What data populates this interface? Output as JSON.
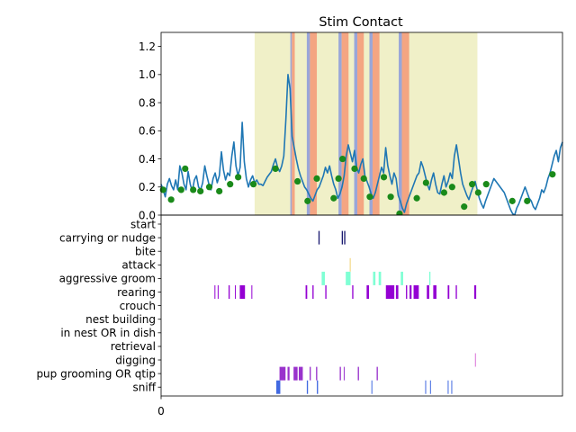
{
  "chart_data": [
    {
      "type": "line",
      "title": "Stim Contact",
      "xlim": [
        0,
        1000
      ],
      "ylim": [
        0,
        1.3
      ],
      "y_ticks": [
        0.0,
        0.2,
        0.4,
        0.6,
        0.8,
        1.0,
        1.2
      ],
      "y_tick_labels": [
        "0.0",
        "0.2",
        "0.4",
        "0.6",
        "0.8",
        "1.0",
        "1.2"
      ],
      "line_color": "#1f77b4",
      "marker_color": "#1a8a1a",
      "highlight_color": "#f0f0c8",
      "stim_on_color": "#f4a582",
      "stim_pre_color": "#9aa6d8",
      "highlight_window": [
        233,
        788
      ],
      "stim_pulses": [
        [
          322,
          333
        ],
        [
          363,
          388
        ],
        [
          442,
          467
        ],
        [
          481,
          505
        ],
        [
          519,
          544
        ],
        [
          592,
          618
        ]
      ],
      "series": [
        {
          "values": [
            0.22,
            0.18,
            0.13,
            0.22,
            0.26,
            0.21,
            0.18,
            0.25,
            0.18,
            0.35,
            0.3,
            0.22,
            0.18,
            0.31,
            0.22,
            0.17,
            0.25,
            0.28,
            0.2,
            0.18,
            0.23,
            0.35,
            0.28,
            0.22,
            0.18,
            0.26,
            0.3,
            0.23,
            0.28,
            0.45,
            0.32,
            0.25,
            0.3,
            0.28,
            0.42,
            0.52,
            0.35,
            0.28,
            0.34,
            0.66,
            0.38,
            0.26,
            0.2,
            0.25,
            0.28,
            0.23,
            0.25,
            0.22,
            0.22,
            0.21,
            0.24,
            0.27,
            0.29,
            0.31,
            0.36,
            0.4,
            0.34,
            0.31,
            0.35,
            0.42,
            0.68,
            1.0,
            0.9,
            0.56,
            0.48,
            0.4,
            0.33,
            0.28,
            0.24,
            0.2,
            0.18,
            0.15,
            0.12,
            0.1,
            0.14,
            0.18,
            0.2,
            0.24,
            0.28,
            0.34,
            0.3,
            0.35,
            0.28,
            0.22,
            0.18,
            0.12,
            0.15,
            0.2,
            0.28,
            0.42,
            0.5,
            0.44,
            0.38,
            0.46,
            0.34,
            0.3,
            0.36,
            0.4,
            0.28,
            0.24,
            0.2,
            0.15,
            0.12,
            0.16,
            0.22,
            0.28,
            0.34,
            0.3,
            0.48,
            0.35,
            0.28,
            0.22,
            0.3,
            0.26,
            0.14,
            0.1,
            0.05,
            0.02,
            0.08,
            0.12,
            0.16,
            0.2,
            0.24,
            0.28,
            0.3,
            0.38,
            0.34,
            0.28,
            0.22,
            0.18,
            0.25,
            0.3,
            0.22,
            0.16,
            0.15,
            0.22,
            0.28,
            0.2,
            0.24,
            0.3,
            0.26,
            0.42,
            0.5,
            0.4,
            0.3,
            0.22,
            0.18,
            0.14,
            0.11,
            0.16,
            0.2,
            0.24,
            0.18,
            0.12,
            0.08,
            0.05,
            0.1,
            0.14,
            0.18,
            0.22,
            0.26,
            0.24,
            0.22,
            0.2,
            0.18,
            0.16,
            0.12,
            0.08,
            0.04,
            0.01,
            0.0,
            0.05,
            0.08,
            0.12,
            0.16,
            0.2,
            0.16,
            0.12,
            0.1,
            0.06,
            0.04,
            0.08,
            0.12,
            0.18,
            0.16,
            0.2,
            0.26,
            0.3,
            0.36,
            0.42,
            0.46,
            0.38,
            0.48,
            0.52
          ]
        }
      ],
      "markers": [
        [
          5,
          0.18
        ],
        [
          25,
          0.11
        ],
        [
          50,
          0.18
        ],
        [
          60,
          0.33
        ],
        [
          80,
          0.18
        ],
        [
          98,
          0.17
        ],
        [
          120,
          0.2
        ],
        [
          145,
          0.17
        ],
        [
          172,
          0.22
        ],
        [
          192,
          0.27
        ],
        [
          230,
          0.22
        ],
        [
          285,
          0.33
        ],
        [
          340,
          0.24
        ],
        [
          365,
          0.1
        ],
        [
          388,
          0.26
        ],
        [
          430,
          0.12
        ],
        [
          442,
          0.26
        ],
        [
          452,
          0.4
        ],
        [
          482,
          0.33
        ],
        [
          505,
          0.26
        ],
        [
          520,
          0.13
        ],
        [
          555,
          0.27
        ],
        [
          572,
          0.13
        ],
        [
          594,
          0.01
        ],
        [
          637,
          0.12
        ],
        [
          660,
          0.23
        ],
        [
          705,
          0.16
        ],
        [
          725,
          0.2
        ],
        [
          755,
          0.06
        ],
        [
          775,
          0.22
        ],
        [
          790,
          0.16
        ],
        [
          810,
          0.22
        ],
        [
          875,
          0.1
        ],
        [
          912,
          0.1
        ],
        [
          975,
          0.29
        ]
      ]
    },
    {
      "type": "event-raster",
      "xlim": [
        0,
        1000
      ],
      "x_ticks": [
        0
      ],
      "x_tick_labels": [
        "0"
      ],
      "categories": [
        "start",
        "carrying or nudge",
        "bite",
        "attack",
        "aggressive groom",
        "rearing",
        "crouch",
        "nest building",
        "in nest OR in dish",
        "retrieval",
        "digging",
        "pup grooming OR qtip",
        "sniff"
      ],
      "events": [
        {
          "category": "carrying or nudge",
          "color": "#191970",
          "intervals": [
            [
              392,
              395
            ],
            [
              450,
              453
            ],
            [
              456,
              459
            ]
          ]
        },
        {
          "category": "attack",
          "color": "#f0d070",
          "intervals": [
            [
              470,
              472
            ]
          ]
        },
        {
          "category": "aggressive groom",
          "color": "#7fffd4",
          "intervals": [
            [
              400,
              408
            ],
            [
              460,
              472
            ],
            [
              528,
              534
            ],
            [
              542,
              548
            ],
            [
              597,
              603
            ],
            [
              668,
              671
            ]
          ]
        },
        {
          "category": "rearing",
          "color": "#9400d3",
          "intervals": [
            [
              133,
              135
            ],
            [
              141,
              143
            ],
            [
              168,
              171
            ],
            [
              184,
              186
            ],
            [
              196,
              209
            ],
            [
              225,
              227
            ],
            [
              360,
              364
            ],
            [
              377,
              380
            ],
            [
              409,
              412
            ],
            [
              476,
              479
            ],
            [
              512,
              518
            ],
            [
              560,
              581
            ],
            [
              585,
              591
            ],
            [
              610,
              613
            ],
            [
              619,
              624
            ],
            [
              629,
              642
            ],
            [
              662,
              668
            ],
            [
              678,
              686
            ],
            [
              714,
              718
            ],
            [
              734,
              737
            ],
            [
              780,
              785
            ]
          ]
        },
        {
          "category": "digging",
          "color": "#da70d6",
          "intervals": [
            [
              782,
              784
            ]
          ]
        },
        {
          "category": "pup grooming OR qtip",
          "color": "#9932cc",
          "intervals": [
            [
              295,
              310
            ],
            [
              315,
              320
            ],
            [
              330,
              340
            ],
            [
              343,
              353
            ],
            [
              370,
              373
            ],
            [
              386,
              389
            ],
            [
              445,
              448
            ],
            [
              455,
              457
            ],
            [
              490,
              493
            ],
            [
              537,
              540
            ]
          ]
        },
        {
          "category": "sniff",
          "color": "#4169e1",
          "intervals": [
            [
              287,
              297
            ],
            [
              363,
              366
            ],
            [
              388,
              391
            ],
            [
              524,
              526
            ],
            [
              658,
              660
            ],
            [
              670,
              672
            ],
            [
              714,
              716
            ],
            [
              723,
              725
            ]
          ]
        }
      ]
    }
  ]
}
